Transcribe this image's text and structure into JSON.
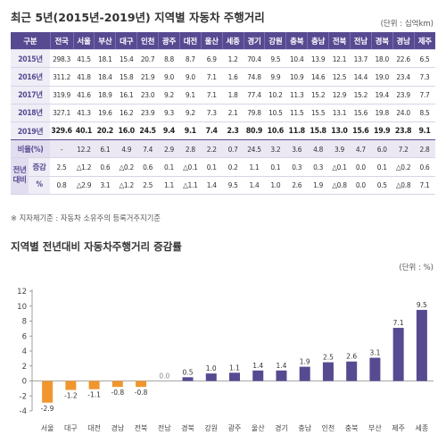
{
  "table_title": "최근 5년(2015년-2019년) 지역별 자동차 주행거리",
  "table_unit": "(단위 : 십억km)",
  "table_corner": "구분",
  "regions": [
    "전국",
    "서울",
    "부산",
    "대구",
    "인천",
    "광주",
    "대전",
    "울산",
    "세종",
    "경기",
    "강원",
    "충북",
    "충남",
    "전북",
    "전남",
    "경북",
    "경남",
    "제주"
  ],
  "rows": [
    {
      "label": "2015년",
      "values": [
        "298.3",
        "41.5",
        "18.1",
        "15.4",
        "20.7",
        "8.8",
        "8.7",
        "6.9",
        "1.2",
        "70.4",
        "9.5",
        "10.4",
        "13.9",
        "12.1",
        "13.7",
        "18.0",
        "22.6",
        "6.5"
      ]
    },
    {
      "label": "2016년",
      "values": [
        "311.2",
        "41.8",
        "18.4",
        "15.8",
        "21.9",
        "9.0",
        "9.0",
        "7.1",
        "1.6",
        "74.8",
        "9.9",
        "10.9",
        "14.6",
        "12.5",
        "14.4",
        "19.0",
        "23.4",
        "7.3"
      ]
    },
    {
      "label": "2017년",
      "values": [
        "319.9",
        "41.6",
        "18.9",
        "16.1",
        "23.0",
        "9.2",
        "9.1",
        "7.1",
        "1.8",
        "77.4",
        "10.2",
        "11.3",
        "15.2",
        "12.9",
        "15.2",
        "19.4",
        "23.9",
        "7.7"
      ]
    },
    {
      "label": "2018년",
      "values": [
        "327.1",
        "41.3",
        "19.6",
        "16.2",
        "23.9",
        "9.3",
        "9.2",
        "7.3",
        "2.1",
        "79.8",
        "10.5",
        "11.5",
        "15.5",
        "13.1",
        "15.6",
        "19.8",
        "24.0",
        "8.5"
      ]
    },
    {
      "label": "2019년",
      "values": [
        "329.6",
        "40.1",
        "20.2",
        "16.0",
        "24.5",
        "9.4",
        "9.1",
        "7.4",
        "2.3",
        "80.9",
        "10.6",
        "11.8",
        "15.8",
        "13.0",
        "15.6",
        "19.9",
        "23.8",
        "9.1"
      ]
    }
  ],
  "ratio_row": {
    "label": "비율(%)",
    "values": [
      "-",
      "12.2",
      "6.1",
      "4.9",
      "7.4",
      "2.9",
      "2.8",
      "2.2",
      "0.7",
      "24.5",
      "3.2",
      "3.6",
      "4.8",
      "3.9",
      "4.7",
      "6.0",
      "7.2",
      "2.8"
    ]
  },
  "yoy_group_label": "전년 대비",
  "change_row": {
    "label": "증감",
    "values": [
      "2.5",
      "△1.2",
      "0.6",
      "△0.2",
      "0.6",
      "0.1",
      "△0.1",
      "0.1",
      "0.2",
      "1.1",
      "0.1",
      "0.3",
      "0.3",
      "△0.1",
      "0.0",
      "0.1",
      "△0.2",
      "0.6"
    ]
  },
  "pct_row": {
    "label": "%",
    "values": [
      "0.8",
      "△2.9",
      "3.1",
      "△1.2",
      "2.5",
      "1.1",
      "△1.1",
      "1.4",
      "9.5",
      "1.4",
      "1.0",
      "2.6",
      "1.9",
      "△0.8",
      "0.0",
      "0.5",
      "△0.8",
      "7.1"
    ]
  },
  "note": "※ 지자체기준 : 자동차 소유주의 등록거주지기준",
  "chart_data": {
    "type": "bar",
    "title": "지역별 전년대비 자동차주행거리 증감률",
    "unit": "(단위 : %)",
    "categories": [
      "서울",
      "대구",
      "대전",
      "경남",
      "전북",
      "전남",
      "경북",
      "강원",
      "광주",
      "울산",
      "경기",
      "충남",
      "인천",
      "충북",
      "부산",
      "제주",
      "세종"
    ],
    "values": [
      -2.9,
      -1.2,
      -1.1,
      -0.8,
      -0.8,
      0.0,
      0.5,
      1.0,
      1.1,
      1.4,
      1.4,
      1.9,
      2.5,
      2.6,
      3.1,
      7.1,
      9.5
    ],
    "value_labels": [
      "-2.9",
      "-1.2",
      "-1.1",
      "-0.8",
      "-0.8",
      "0.0",
      "0.5",
      "1.0",
      "1.1",
      "1.4",
      "1.4",
      "1.9",
      "2.5",
      "2.6",
      "3.1",
      "7.1",
      "9.5"
    ],
    "yticks": [
      -4,
      -2,
      0,
      2,
      4,
      6,
      8,
      10,
      12
    ],
    "ylim": [
      -4,
      12
    ],
    "grid": false,
    "colors": {
      "negative": "#f0962f",
      "positive": "#574a91",
      "zero_label": "#888888"
    }
  }
}
